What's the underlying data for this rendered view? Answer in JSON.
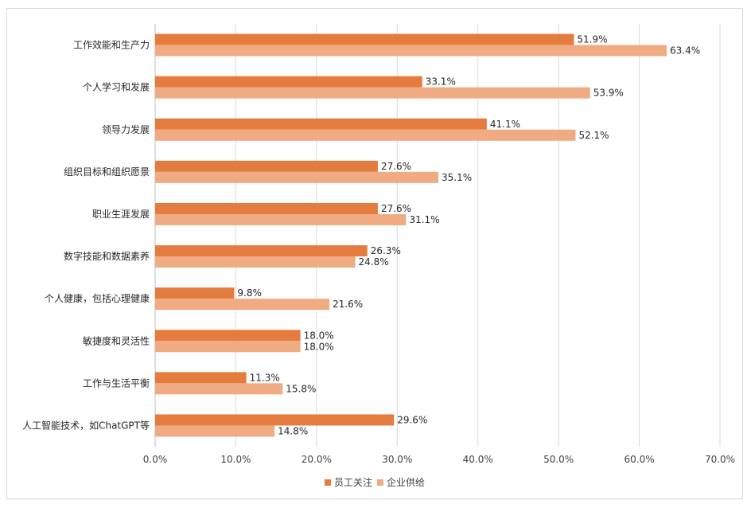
{
  "chart_data": {
    "type": "bar",
    "orientation": "horizontal",
    "categories": [
      "工作效能和生产力",
      "个人学习和发展",
      "领导力发展",
      "组织目标和组织愿景",
      "职业生涯发展",
      "数字技能和数据素养",
      "个人健康，包括心理健康",
      "敏捷度和灵活性",
      "工作与生活平衡",
      "人工智能技术，如ChatGPT等"
    ],
    "series": [
      {
        "name": "员工关注",
        "color": "#e47c3f",
        "values": [
          51.9,
          33.1,
          41.1,
          27.6,
          27.6,
          26.3,
          9.8,
          18.0,
          11.3,
          29.6
        ],
        "labels": [
          "51.9%",
          "33.1%",
          "41.1%",
          "27.6%",
          "27.6%",
          "26.3%",
          "9.8%",
          "18.0%",
          "11.3%",
          "29.6%"
        ]
      },
      {
        "name": "企业供给",
        "color": "#f0ab82",
        "values": [
          63.4,
          53.9,
          52.1,
          35.1,
          31.1,
          24.8,
          21.6,
          18.0,
          15.8,
          14.8
        ],
        "labels": [
          "63.4%",
          "53.9%",
          "52.1%",
          "35.1%",
          "31.1%",
          "24.8%",
          "21.6%",
          "18.0%",
          "15.8%",
          "14.8%"
        ]
      }
    ],
    "xlim": [
      0,
      70
    ],
    "xticks": [
      "0.0%",
      "10.0%",
      "20.0%",
      "30.0%",
      "40.0%",
      "50.0%",
      "60.0%",
      "70.0%"
    ],
    "grid": "vertical",
    "legend": "bottom-center",
    "title": "",
    "xlabel": "",
    "ylabel": ""
  }
}
